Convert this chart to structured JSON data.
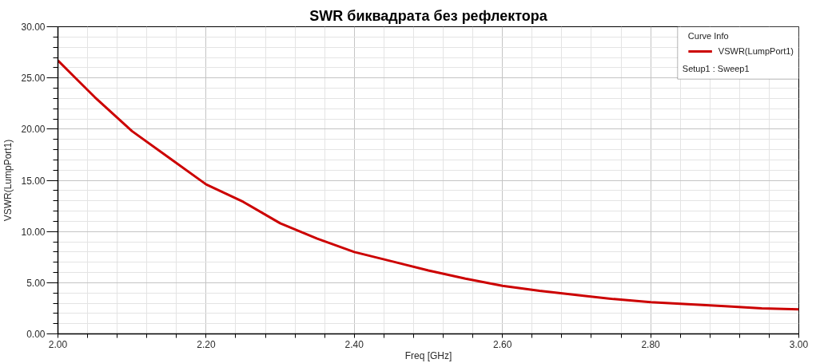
{
  "chart_data": {
    "type": "line",
    "title": "SWR биквадрата без рефлектора",
    "xlabel": "Freq [GHz]",
    "ylabel": "VSWR(LumpPort1)",
    "legend_title": "Curve Info",
    "annotations": [
      "Setup1 : Sweep1"
    ],
    "x": [
      2.0,
      2.025,
      2.05,
      2.1,
      2.15,
      2.2,
      2.25,
      2.3,
      2.35,
      2.4,
      2.45,
      2.5,
      2.55,
      2.6,
      2.65,
      2.7,
      2.75,
      2.8,
      2.85,
      2.9,
      2.95,
      3.0
    ],
    "series": [
      {
        "name": "VSWR(LumpPort1)",
        "color": "#cc0000",
        "values": [
          26.7,
          24.9,
          23.1,
          19.8,
          17.2,
          14.6,
          12.9,
          10.8,
          9.3,
          8.0,
          7.1,
          6.2,
          5.4,
          4.7,
          4.2,
          3.8,
          3.4,
          3.1,
          2.9,
          2.7,
          2.5,
          2.4
        ]
      }
    ],
    "xlim": [
      2.0,
      3.0
    ],
    "ylim": [
      0,
      30
    ],
    "xticks": [
      {
        "value": 2.0,
        "label": "2.00"
      },
      {
        "value": 2.04,
        "label": null
      },
      {
        "value": 2.08,
        "label": null
      },
      {
        "value": 2.12,
        "label": null
      },
      {
        "value": 2.16,
        "label": null
      },
      {
        "value": 2.2,
        "label": "2.20"
      },
      {
        "value": 2.24,
        "label": null
      },
      {
        "value": 2.28,
        "label": null
      },
      {
        "value": 2.32,
        "label": null
      },
      {
        "value": 2.36,
        "label": null
      },
      {
        "value": 2.4,
        "label": "2.40"
      },
      {
        "value": 2.44,
        "label": null
      },
      {
        "value": 2.48,
        "label": null
      },
      {
        "value": 2.52,
        "label": null
      },
      {
        "value": 2.56,
        "label": null
      },
      {
        "value": 2.6,
        "label": "2.60"
      },
      {
        "value": 2.64,
        "label": null
      },
      {
        "value": 2.68,
        "label": null
      },
      {
        "value": 2.72,
        "label": null
      },
      {
        "value": 2.76,
        "label": null
      },
      {
        "value": 2.8,
        "label": "2.80"
      },
      {
        "value": 2.84,
        "label": null
      },
      {
        "value": 2.88,
        "label": null
      },
      {
        "value": 2.92,
        "label": null
      },
      {
        "value": 2.96,
        "label": null
      },
      {
        "value": 3.0,
        "label": "3.00"
      }
    ],
    "yticks": [
      {
        "value": 0,
        "label": "0.00"
      },
      {
        "value": 1,
        "label": null
      },
      {
        "value": 2,
        "label": null
      },
      {
        "value": 3,
        "label": null
      },
      {
        "value": 4,
        "label": null
      },
      {
        "value": 5,
        "label": "5.00"
      },
      {
        "value": 6,
        "label": null
      },
      {
        "value": 7,
        "label": null
      },
      {
        "value": 8,
        "label": null
      },
      {
        "value": 9,
        "label": null
      },
      {
        "value": 10,
        "label": "10.00"
      },
      {
        "value": 11,
        "label": null
      },
      {
        "value": 12,
        "label": null
      },
      {
        "value": 13,
        "label": null
      },
      {
        "value": 14,
        "label": null
      },
      {
        "value": 15,
        "label": "15.00"
      },
      {
        "value": 16,
        "label": null
      },
      {
        "value": 17,
        "label": null
      },
      {
        "value": 18,
        "label": null
      },
      {
        "value": 19,
        "label": null
      },
      {
        "value": 20,
        "label": "20.00"
      },
      {
        "value": 21,
        "label": null
      },
      {
        "value": 22,
        "label": null
      },
      {
        "value": 23,
        "label": null
      },
      {
        "value": 24,
        "label": null
      },
      {
        "value": 25,
        "label": "25.00"
      },
      {
        "value": 26,
        "label": null
      },
      {
        "value": 27,
        "label": null
      },
      {
        "value": 28,
        "label": null
      },
      {
        "value": 29,
        "label": null
      },
      {
        "value": 30,
        "label": "30.00"
      }
    ],
    "grid": true,
    "legend": "top right"
  }
}
